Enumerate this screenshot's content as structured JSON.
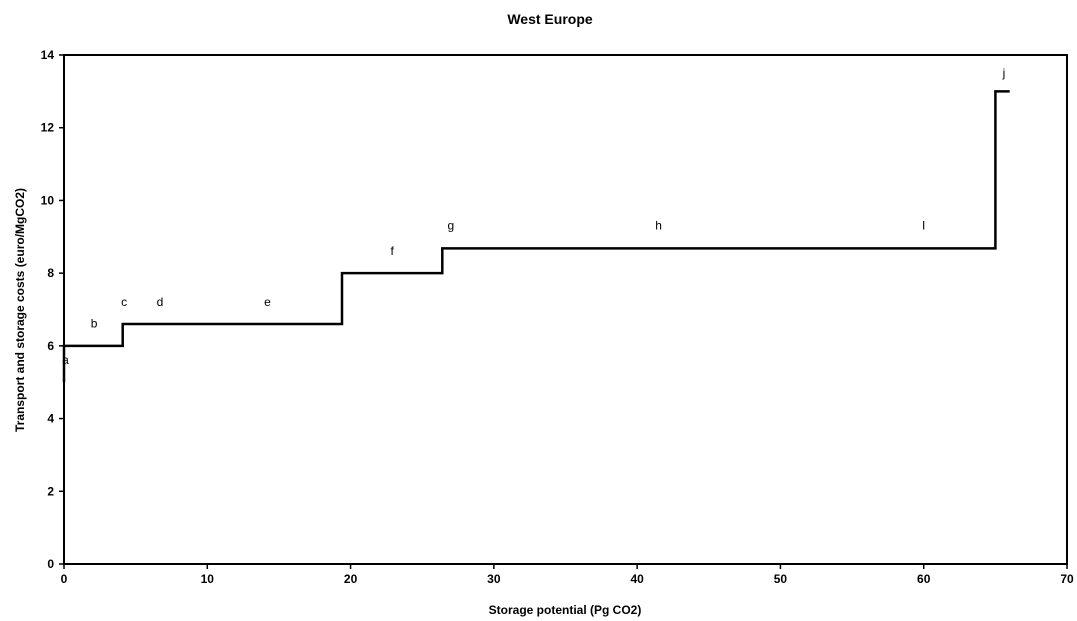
{
  "chart_data": {
    "type": "line",
    "title": "West Europe",
    "xlabel": "Storage potential (Pg CO2)",
    "ylabel": "Transport and storage costs (euro/MgCO2)",
    "xlim": [
      0,
      70
    ],
    "ylim": [
      0,
      14
    ],
    "xticks": [
      0,
      10,
      20,
      30,
      40,
      50,
      60,
      70
    ],
    "yticks": [
      0,
      2,
      4,
      6,
      8,
      10,
      12,
      14
    ],
    "grid": false,
    "legend": "none",
    "line_color": "#000000",
    "step_points": [
      [
        0,
        5.0
      ],
      [
        0,
        6.0
      ],
      [
        4.1,
        6.0
      ],
      [
        4.1,
        6.6
      ],
      [
        19.4,
        6.6
      ],
      [
        19.4,
        8.0
      ],
      [
        26.4,
        8.0
      ],
      [
        26.4,
        8.68
      ],
      [
        65.0,
        8.68
      ],
      [
        65.0,
        13.0
      ],
      [
        66.0,
        13.0
      ]
    ],
    "segment_labels": [
      {
        "text": "a",
        "x": 0.1,
        "y": 5.5
      },
      {
        "text": "b",
        "x": 2.1,
        "y": 6.5
      },
      {
        "text": "c",
        "x": 4.2,
        "y": 7.1
      },
      {
        "text": "d",
        "x": 6.7,
        "y": 7.1
      },
      {
        "text": "e",
        "x": 14.2,
        "y": 7.1
      },
      {
        "text": "f",
        "x": 22.9,
        "y": 8.5
      },
      {
        "text": "g",
        "x": 27.0,
        "y": 9.2
      },
      {
        "text": "h",
        "x": 41.5,
        "y": 9.2
      },
      {
        "text": "I",
        "x": 60.0,
        "y": 9.2
      },
      {
        "text": "j",
        "x": 65.6,
        "y": 13.4
      }
    ]
  }
}
